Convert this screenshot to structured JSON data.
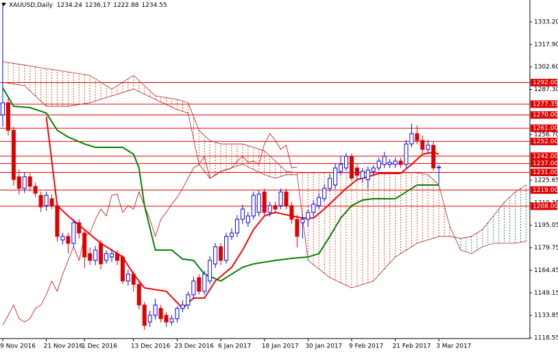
{
  "chart_data": {
    "type": "candlestick",
    "title": "XAUUSD,Daily",
    "ohlc": [
      [
        1270.0,
        1345.0,
        1262.0,
        1278.3
      ],
      [
        1278.3,
        1281.0,
        1256.0,
        1259.6
      ],
      [
        1259.6,
        1262.0,
        1222.0,
        1226.1
      ],
      [
        1228.0,
        1233.0,
        1216.0,
        1220.1
      ],
      [
        1220.1,
        1231.0,
        1217.0,
        1228.0
      ],
      [
        1228.0,
        1230.5,
        1218.0,
        1221.5
      ],
      [
        1221.5,
        1224.0,
        1214.0,
        1216.8
      ],
      [
        1215.4,
        1218.0,
        1204.0,
        1207.5
      ],
      [
        1208.4,
        1218.0,
        1205.0,
        1215.4
      ],
      [
        1213.1,
        1216.0,
        1206.0,
        1208.4
      ],
      [
        1208.4,
        1211.0,
        1184.0,
        1187.5
      ],
      [
        1185.1,
        1190.0,
        1182.0,
        1187.5
      ],
      [
        1187.5,
        1190.0,
        1176.0,
        1182.8
      ],
      [
        1182.8,
        1199.0,
        1180.0,
        1196.8
      ],
      [
        1196.8,
        1199.0,
        1186.0,
        1189.8
      ],
      [
        1189.8,
        1192.0,
        1166.0,
        1173.5
      ],
      [
        1175.8,
        1180.0,
        1168.0,
        1171.2
      ],
      [
        1171.2,
        1181.0,
        1168.0,
        1178.2
      ],
      [
        1182.8,
        1185.0,
        1165.0,
        1168.8
      ],
      [
        1171.2,
        1178.0,
        1169.0,
        1175.8
      ],
      [
        1173.5,
        1179.0,
        1170.0,
        1175.8
      ],
      [
        1175.8,
        1178.0,
        1168.0,
        1171.2
      ],
      [
        1173.5,
        1175.0,
        1155.0,
        1157.2
      ],
      [
        1157.2,
        1165.0,
        1154.0,
        1161.9
      ],
      [
        1161.9,
        1164.0,
        1150.0,
        1154.9
      ],
      [
        1154.9,
        1157.0,
        1138.0,
        1140.9
      ],
      [
        1140.9,
        1143.0,
        1124.0,
        1127.0
      ],
      [
        1129.3,
        1137.0,
        1126.0,
        1133.9
      ],
      [
        1133.9,
        1145.0,
        1131.0,
        1140.9
      ],
      [
        1138.6,
        1141.0,
        1129.0,
        1131.6
      ],
      [
        1133.9,
        1136.0,
        1126.0,
        1129.3
      ],
      [
        1129.3,
        1134.0,
        1127.0,
        1131.6
      ],
      [
        1131.6,
        1140.0,
        1129.0,
        1138.6
      ],
      [
        1138.6,
        1144.0,
        1136.0,
        1140.9
      ],
      [
        1140.9,
        1150.0,
        1138.0,
        1147.9
      ],
      [
        1147.9,
        1160.0,
        1145.0,
        1157.2
      ],
      [
        1159.5,
        1162.0,
        1148.0,
        1150.2
      ],
      [
        1150.2,
        1164.0,
        1148.0,
        1161.9
      ],
      [
        1157.2,
        1174.0,
        1155.0,
        1171.2
      ],
      [
        1168.8,
        1183.0,
        1166.0,
        1180.5
      ],
      [
        1180.5,
        1183.0,
        1168.0,
        1171.2
      ],
      [
        1171.2,
        1190.0,
        1169.0,
        1187.5
      ],
      [
        1187.5,
        1193.0,
        1185.0,
        1189.8
      ],
      [
        1189.8,
        1202.0,
        1187.0,
        1199.1
      ],
      [
        1199.1,
        1209.0,
        1196.0,
        1206.1
      ],
      [
        1196.8,
        1204.0,
        1194.0,
        1201.4
      ],
      [
        1201.4,
        1218.0,
        1199.0,
        1215.4
      ],
      [
        1203.8,
        1219.0,
        1201.0,
        1216.3
      ],
      [
        1217.7,
        1220.0,
        1201.0,
        1203.8
      ],
      [
        1203.8,
        1211.0,
        1201.0,
        1208.4
      ],
      [
        1208.4,
        1211.0,
        1203.0,
        1206.1
      ],
      [
        1208.4,
        1220.0,
        1206.0,
        1217.7
      ],
      [
        1217.7,
        1220.0,
        1206.0,
        1208.4
      ],
      [
        1208.4,
        1211.0,
        1196.0,
        1199.1
      ],
      [
        1199.1,
        1202.0,
        1180.0,
        1187.5
      ],
      [
        1196.8,
        1202.0,
        1186.0,
        1199.1
      ],
      [
        1199.1,
        1206.0,
        1194.0,
        1203.8
      ],
      [
        1203.8,
        1212.0,
        1201.0,
        1209.4
      ],
      [
        1208.4,
        1217.0,
        1206.0,
        1214.0
      ],
      [
        1213.1,
        1223.0,
        1211.0,
        1220.1
      ],
      [
        1220.1,
        1230.0,
        1218.0,
        1227.0
      ],
      [
        1222.4,
        1237.0,
        1220.0,
        1234.0
      ],
      [
        1231.7,
        1242.0,
        1229.0,
        1236.4
      ],
      [
        1234.0,
        1244.0,
        1232.0,
        1241.9
      ],
      [
        1241.9,
        1244.0,
        1225.0,
        1227.0
      ],
      [
        1234.0,
        1237.0,
        1226.0,
        1229.0
      ],
      [
        1227.0,
        1234.0,
        1224.0,
        1231.7
      ],
      [
        1226.1,
        1235.0,
        1220.0,
        1232.6
      ],
      [
        1231.7,
        1236.0,
        1229.0,
        1234.0
      ],
      [
        1234.0,
        1241.0,
        1232.0,
        1238.7
      ],
      [
        1236.4,
        1245.0,
        1234.0,
        1241.9
      ],
      [
        1236.4,
        1240.0,
        1234.0,
        1237.8
      ],
      [
        1236.4,
        1241.0,
        1234.0,
        1238.7
      ],
      [
        1238.7,
        1241.0,
        1234.0,
        1236.4
      ],
      [
        1236.4,
        1253.0,
        1234.0,
        1250.3
      ],
      [
        1250.3,
        1264.0,
        1248.0,
        1257.3
      ],
      [
        1257.3,
        1263.0,
        1250.0,
        1252.7
      ],
      [
        1252.7,
        1256.0,
        1244.0,
        1246.6
      ],
      [
        1246.6,
        1253.0,
        1244.0,
        1249.4
      ],
      [
        1249.4,
        1252.0,
        1232.0,
        1234.0
      ],
      [
        1234.24,
        1236.17,
        1222.88,
        1234.55
      ]
    ],
    "bull_color": "#0000ff",
    "bear_color": "#e00000",
    "lines": [
      {
        "color": "#ff0000",
        "x": [
          8,
          10,
          12,
          15,
          18,
          20,
          22,
          24,
          26,
          30,
          33,
          35,
          37,
          39,
          42,
          44,
          46,
          48,
          50,
          53,
          55,
          57,
          59,
          61,
          63,
          65,
          67,
          69,
          73,
          75,
          77,
          79,
          80
        ],
        "values": [
          1268.9,
          1208.4,
          1201.4,
          1192.1,
          1182.8,
          1178.2,
          1173.5,
          1161.9,
          1152.5,
          1150.2,
          1138.6,
          1145.6,
          1145.6,
          1157.2,
          1166.5,
          1178.2,
          1192.1,
          1201.4,
          1203.8,
          1201.4,
          1200.0,
          1200.0,
          1206.1,
          1213.1,
          1220.1,
          1226.1,
          1228.0,
          1230.3,
          1230.3,
          1236.4,
          1243.3,
          1244.7,
          1243.3
        ]
      },
      {
        "color": "#008000",
        "x": [
          0,
          2,
          5,
          8,
          10,
          12,
          15,
          17,
          22,
          24,
          25,
          26,
          28,
          31,
          33,
          35,
          37,
          40,
          42,
          44,
          46,
          50,
          53,
          56,
          58,
          60,
          62,
          64,
          66,
          68,
          72,
          74,
          76,
          80
        ],
        "values": [
          1288.5,
          1275.9,
          1275.0,
          1271.3,
          1259.6,
          1255.0,
          1250.3,
          1248.0,
          1248.0,
          1243.3,
          1234.0,
          1208.4,
          1178.2,
          1178.2,
          1172.1,
          1171.2,
          1161.9,
          1157.2,
          1161.9,
          1166.5,
          1168.8,
          1171.2,
          1172.6,
          1173.5,
          1175.8,
          1187.5,
          1200.0,
          1208.4,
          1212.2,
          1213.1,
          1213.1,
          1217.7,
          1222.4,
          1222.4
        ]
      }
    ],
    "lagging_color": "#cc0000",
    "cloud": {
      "x": [
        0,
        4,
        8,
        12,
        16,
        20,
        24,
        28,
        32,
        34,
        36,
        38,
        40,
        44,
        48,
        50,
        52,
        54,
        56,
        60,
        64,
        68,
        72,
        76,
        78,
        80,
        82,
        84,
        86,
        88,
        90,
        92,
        94,
        96
      ],
      "span_a": [
        1292.2,
        1289.9,
        1275.9,
        1275.9,
        1278.3,
        1282.9,
        1287.6,
        1280.6,
        1273.6,
        1271.3,
        1236.4,
        1227.0,
        1231.7,
        1236.4,
        1229.4,
        1227.0,
        1229.4,
        1229.4,
        1171.2,
        1159.5,
        1152.5,
        1157.2,
        1173.5,
        1182.8,
        1185.1,
        1187.5,
        1187.5,
        1186.1,
        1187.5,
        1192.1,
        1201.4,
        1210.7,
        1217.7,
        1222.4
      ],
      "span_b": [
        1306.2,
        1303.9,
        1301.5,
        1299.2,
        1296.9,
        1287.6,
        1296.9,
        1282.9,
        1280.6,
        1278.3,
        1259.6,
        1252.7,
        1250.3,
        1250.3,
        1245.7,
        1238.7,
        1231.7,
        1230.8,
        1230.8,
        1230.8,
        1230.8,
        1230.8,
        1230.8,
        1230.8,
        1229.4,
        1222.4,
        1194.4,
        1178.2,
        1175.8,
        1180.5,
        1182.8,
        1182.8,
        1182.8,
        1184.2
      ],
      "line_color": "#b22222",
      "a_above_color": "#2e8b57",
      "b_above_color": "#e0501e"
    },
    "levels": [
      {
        "value": 1292,
        "label": "1292.00"
      },
      1277.35,
      {
        "value": 1270,
        "label": "1270.00"
      },
      {
        "value": 1261,
        "label": "1261.00"
      },
      {
        "value": 1252,
        "label": "1252.00"
      },
      {
        "value": 1242,
        "label": "1242.00"
      },
      {
        "value": 1237,
        "label": "1237.00"
      },
      {
        "value": 1231,
        "label": "1231.00"
      },
      {
        "value": 1219,
        "label": "1219.00"
      },
      {
        "value": 1208,
        "label": "1208.00"
      }
    ],
    "level_color": "#e00000",
    "xlim": [
      -0.5,
      96.7
    ],
    "xticks": [
      {
        "value": 0,
        "label": "9 Nov 2016"
      },
      {
        "value": 8,
        "label": "21 Nov 2016"
      },
      {
        "value": 15,
        "label": "1 Dec 2016"
      },
      {
        "value": 24,
        "label": "13 Dec 2016"
      },
      {
        "value": 32,
        "label": "23 Dec 2016"
      },
      {
        "value": 40,
        "label": "6 Jan 2017"
      },
      {
        "value": 48,
        "label": "18 Jan 2017"
      },
      {
        "value": 56,
        "label": "30 Jan 2017"
      },
      {
        "value": 64,
        "label": "9 Feb 2017"
      },
      {
        "value": 72,
        "label": "21 Feb 2017"
      },
      {
        "value": 80,
        "label": "3 Mar 2017"
      }
    ],
    "ylim": [
      1118.1,
      1348.1
    ],
    "yticks": [
      {
        "value": 1333.2,
        "label": "1333.20"
      },
      {
        "value": 1317.9,
        "label": "1317.90"
      },
      {
        "value": 1302.6,
        "label": "1302.60"
      },
      {
        "value": 1287.3,
        "label": "1287.30"
      },
      {
        "value": 1256.7,
        "label": "1256.70"
      },
      1225.65,
      1210.35,
      1195.05,
      1179.75,
      1164.45,
      1149.15,
      1133.85,
      1118.55
    ]
  }
}
